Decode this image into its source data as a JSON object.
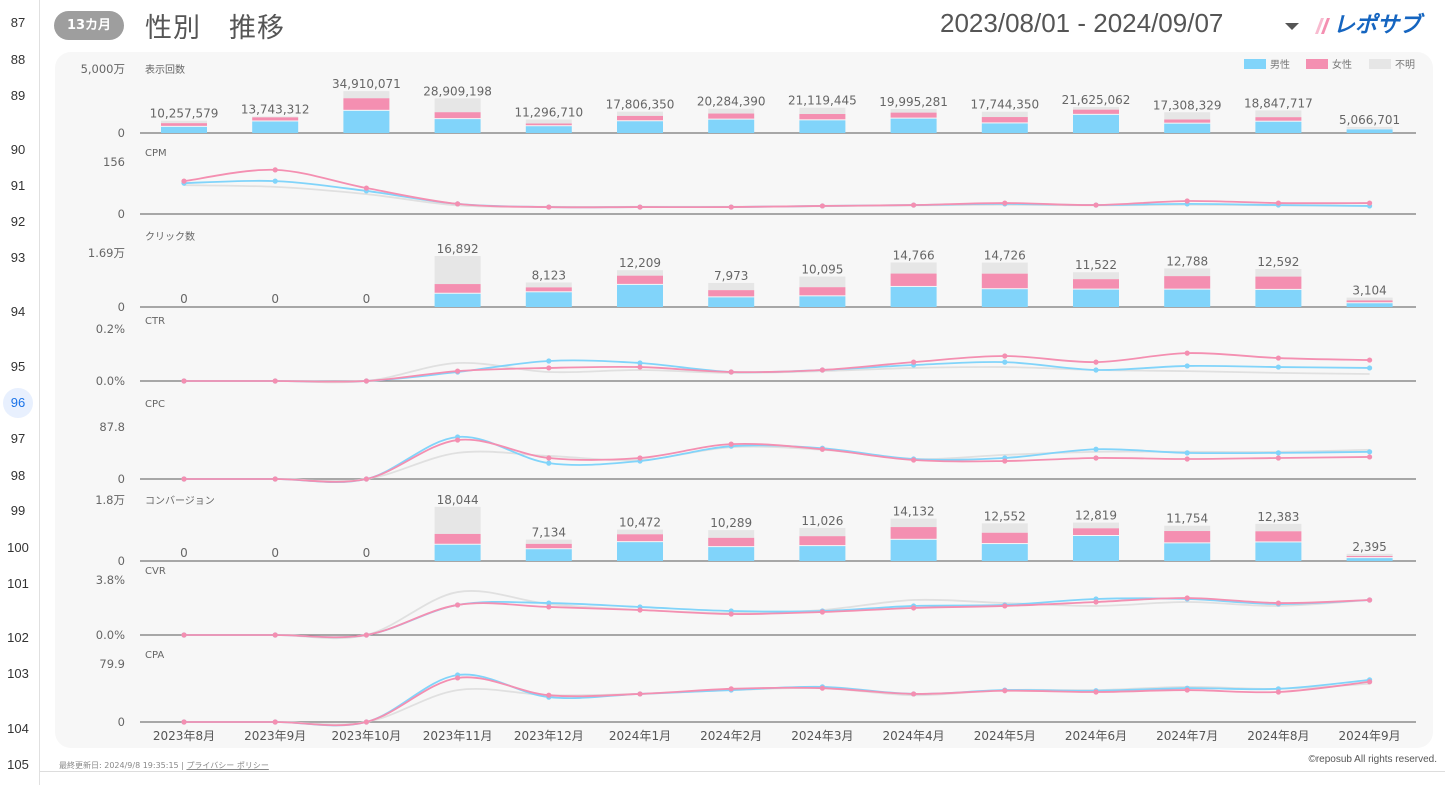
{
  "gutter": {
    "rows": [
      "87",
      "88",
      "89",
      "90",
      "91",
      "92",
      "93",
      "94",
      "95",
      "96",
      "97",
      "98",
      "99",
      "100",
      "101",
      "102",
      "103",
      "104",
      "105"
    ],
    "active": "96"
  },
  "header": {
    "badge": "13カ月",
    "title": "性別　推移",
    "date_range": "2023/08/01 - 2024/09/07",
    "logo_text": "レポサブ"
  },
  "footer": {
    "updated": "最終更新日: 2024/9/8 19:35:15",
    "separator": "|",
    "privacy": "プライバシー ポリシー",
    "copyright": "©reposub All rights reserved."
  },
  "colors": {
    "male": "#81d4fa",
    "female": "#f48fb1",
    "unknown": "#e6e6e6"
  },
  "chart_data": {
    "type": "bar+line",
    "categories": [
      "2023年8月",
      "2023年9月",
      "2023年10月",
      "2023年11月",
      "2023年12月",
      "2024年1月",
      "2024年2月",
      "2024年3月",
      "2024年4月",
      "2024年5月",
      "2024年6月",
      "2024年7月",
      "2024年8月",
      "2024年9月"
    ],
    "legend": {
      "position": "top-right",
      "entries": [
        "男性",
        "女性",
        "不明"
      ]
    },
    "panels": [
      {
        "title": "表示回数",
        "type": "stacked-bar",
        "ymax": 50000000,
        "ymax_label": "5,000万",
        "ymin_label": "0",
        "totals": [
          10257579,
          13743312,
          34910071,
          28909198,
          11296710,
          17806350,
          20284390,
          21119445,
          19995281,
          17744350,
          21625062,
          17308329,
          18847717,
          5066701
        ],
        "total_labels": [
          "10,257,579",
          "13,743,312",
          "34,910,071",
          "28,909,198",
          "11,296,710",
          "17,806,350",
          "20,284,390",
          "21,119,445",
          "19,995,281",
          "17,744,350",
          "21,625,062",
          "17,308,329",
          "18,847,717",
          "5,066,701"
        ],
        "share_male": [
          0.5,
          0.7,
          0.53,
          0.4,
          0.5,
          0.55,
          0.55,
          0.5,
          0.6,
          0.45,
          0.7,
          0.45,
          0.5,
          0.6
        ],
        "share_female": [
          0.3,
          0.25,
          0.3,
          0.2,
          0.2,
          0.25,
          0.25,
          0.25,
          0.25,
          0.3,
          0.2,
          0.2,
          0.2,
          0.1
        ]
      },
      {
        "title": "CPM",
        "type": "line",
        "ymax": 156,
        "ymax_label": "156",
        "ymin_label": "0",
        "male": [
          107,
          114,
          80,
          35,
          24,
          24,
          24,
          28,
          31,
          35,
          31,
          35,
          31,
          28
        ],
        "female": [
          114,
          153,
          90,
          35,
          24,
          24,
          24,
          28,
          31,
          38,
          31,
          45,
          38,
          38
        ],
        "unknown": [
          100,
          94,
          69,
          30,
          25,
          25,
          25,
          27,
          30,
          32,
          30,
          32,
          30,
          28
        ]
      },
      {
        "title": "クリック数",
        "type": "stacked-bar",
        "ymax": 16900,
        "ymax_label": "1.69万",
        "ymin_label": "0",
        "totals": [
          0,
          0,
          0,
          16892,
          8123,
          12209,
          7973,
          10095,
          14766,
          14726,
          11522,
          12788,
          12592,
          3104
        ],
        "total_labels": [
          "0",
          "0",
          "0",
          "16,892",
          "8,123",
          "12,209",
          "7,973",
          "10,095",
          "14,766",
          "14,726",
          "11,522",
          "12,788",
          "12,592",
          "3,104"
        ],
        "share_male": [
          0,
          0,
          0,
          0.26,
          0.6,
          0.6,
          0.4,
          0.35,
          0.45,
          0.4,
          0.5,
          0.45,
          0.45,
          0.4
        ],
        "share_female": [
          0,
          0,
          0,
          0.19,
          0.2,
          0.25,
          0.3,
          0.3,
          0.3,
          0.35,
          0.3,
          0.35,
          0.35,
          0.3
        ]
      },
      {
        "title": "CTR",
        "type": "line",
        "ymax": 0.2,
        "ymax_label": "0.2%",
        "ymin_label": "0.0%",
        "male": [
          0,
          0,
          0,
          0.04,
          0.089,
          0.08,
          0.04,
          0.049,
          0.071,
          0.084,
          0.049,
          0.067,
          0.062,
          0.058
        ],
        "female": [
          0,
          0,
          0,
          0.044,
          0.058,
          0.062,
          0.04,
          0.049,
          0.084,
          0.111,
          0.084,
          0.124,
          0.102,
          0.093
        ],
        "unknown": [
          0,
          0,
          0,
          0.08,
          0.04,
          0.049,
          0.036,
          0.044,
          0.058,
          0.062,
          0.049,
          0.044,
          0.036,
          0.031
        ]
      },
      {
        "title": "CPC",
        "type": "line",
        "ymax": 87.8,
        "ymax_label": "87.8",
        "ymin_label": "0",
        "male": [
          0,
          0,
          0,
          82,
          31,
          35,
          64,
          60,
          39,
          41,
          58,
          51,
          51,
          53
        ],
        "female": [
          0,
          0,
          0,
          76,
          41,
          41,
          68,
          58,
          37,
          35,
          41,
          39,
          41,
          43
        ],
        "unknown": [
          0,
          0,
          0,
          51,
          45,
          37,
          62,
          57,
          39,
          47,
          53,
          53,
          53,
          57
        ]
      },
      {
        "title": "コンバージョン",
        "type": "stacked-bar",
        "ymax": 18000,
        "ymax_label": "1.8万",
        "ymin_label": "0",
        "totals": [
          0,
          0,
          0,
          18044,
          7134,
          10472,
          10289,
          11026,
          14132,
          12552,
          12819,
          11754,
          12383,
          2395
        ],
        "total_labels": [
          "0",
          "0",
          "0",
          "18,044",
          "7,134",
          "10,472",
          "10,289",
          "11,026",
          "14,132",
          "12,552",
          "12,819",
          "11,754",
          "12,383",
          "2,395"
        ],
        "share_male": [
          0,
          0,
          0,
          0.3,
          0.55,
          0.6,
          0.45,
          0.45,
          0.5,
          0.45,
          0.65,
          0.5,
          0.5,
          0.4
        ],
        "share_female": [
          0,
          0,
          0,
          0.2,
          0.25,
          0.25,
          0.3,
          0.3,
          0.3,
          0.3,
          0.2,
          0.35,
          0.3,
          0.3
        ]
      },
      {
        "title": "CVR",
        "type": "line",
        "ymax": 3.8,
        "ymax_label": "3.8%",
        "ymin_label": "0.0%",
        "male": [
          0,
          0,
          0,
          2.38,
          2.53,
          2.22,
          1.9,
          1.9,
          2.3,
          2.38,
          2.85,
          2.85,
          2.45,
          2.77
        ],
        "female": [
          0,
          0,
          0,
          2.38,
          2.22,
          1.98,
          1.66,
          1.82,
          2.14,
          2.3,
          2.61,
          2.93,
          2.53,
          2.77
        ],
        "unknown": [
          0,
          0,
          0,
          3.4,
          2.45,
          1.98,
          1.74,
          1.98,
          2.77,
          2.53,
          2.3,
          2.61,
          2.3,
          2.77
        ]
      },
      {
        "title": "CPA",
        "type": "line",
        "ymax": 79.9,
        "ymax_label": "79.9",
        "ymin_label": "0",
        "male": [
          0,
          0,
          0,
          73.6,
          39,
          44,
          50,
          55,
          44,
          50,
          49,
          53,
          52,
          66
        ],
        "female": [
          0,
          0,
          0,
          69,
          42,
          44,
          52,
          53,
          44,
          49,
          47,
          50,
          47,
          63
        ],
        "unknown": [
          0,
          0,
          0,
          50,
          42,
          44,
          50,
          53,
          42,
          50,
          50,
          55,
          52,
          60
        ]
      }
    ]
  }
}
